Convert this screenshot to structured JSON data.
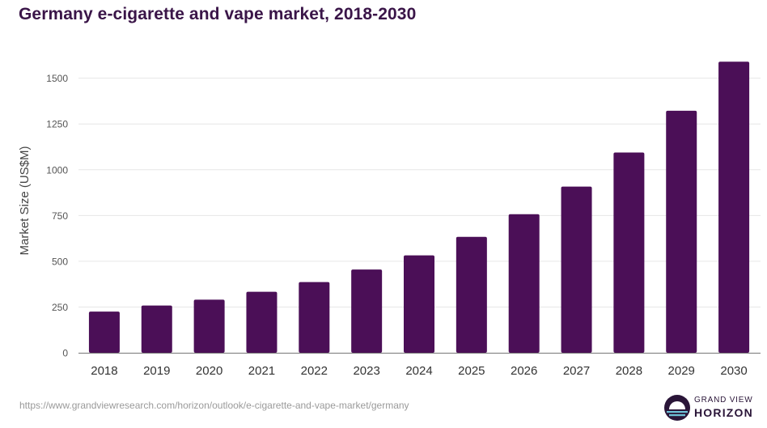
{
  "chart_data": {
    "type": "bar",
    "title": "Germany e-cigarette and vape market, 2018-2030",
    "xlabel": "",
    "ylabel": "Market Size (US$M)",
    "categories": [
      "2018",
      "2019",
      "2020",
      "2021",
      "2022",
      "2023",
      "2024",
      "2025",
      "2026",
      "2027",
      "2028",
      "2029",
      "2030"
    ],
    "values": [
      225,
      258,
      290,
      333,
      386,
      455,
      532,
      633,
      757,
      908,
      1094,
      1322,
      1590
    ],
    "yticks": [
      0,
      250,
      500,
      750,
      1000,
      1250,
      1500
    ],
    "ylim": [
      0,
      1620
    ],
    "grid": true,
    "legend": "none",
    "bar_color": "#4b0f57"
  },
  "footer": {
    "source_url": "https://www.grandviewresearch.com/horizon/outlook/e-cigarette-and-vape-market/germany",
    "brand_line1": "GRAND VIEW",
    "brand_line2": "HORIZON"
  },
  "colors": {
    "title": "#3a1548",
    "bar": "#4b0f57",
    "grid": "#e6e6e6",
    "axis_text": "#555555",
    "logo_dark": "#2a1538",
    "logo_light": "#6ec1d6"
  }
}
